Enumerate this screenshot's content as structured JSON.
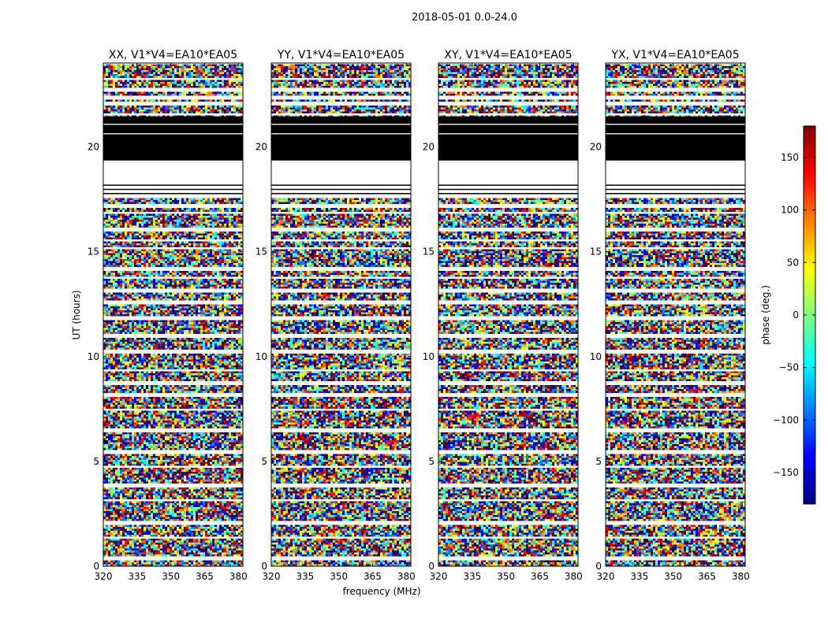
{
  "figure": {
    "suptitle": "2018-05-01 0.0-24.0"
  },
  "chart_data": {
    "type": "heatmap",
    "xlabel": "frequency (MHz)",
    "ylabel": "UT (hours)",
    "xlim": [
      320,
      382
    ],
    "ylim": [
      0,
      24
    ],
    "x_ticks": [
      320,
      335,
      350,
      365,
      380
    ],
    "y_ticks": [
      0,
      5,
      10,
      15,
      20
    ],
    "panels": [
      {
        "title": "XX, V1*V4=EA10*EA05"
      },
      {
        "title": "YY, V1*V4=EA10*EA05"
      },
      {
        "title": "XY, V1*V4=EA10*EA05"
      },
      {
        "title": "YX, V1*V4=EA10*EA05"
      }
    ],
    "colorbar": {
      "label": "phase (deg.)",
      "range": [
        -180,
        180
      ],
      "ticks": [
        -150,
        -100,
        -50,
        0,
        50,
        100,
        150
      ],
      "tick_labels": [
        "−150",
        "−100",
        "−50",
        "0",
        "50",
        "100",
        "150"
      ],
      "colormap": [
        "#00007f",
        "#0000ff",
        "#007fff",
        "#00ffff",
        "#7fff7f",
        "#ffff00",
        "#ff7f00",
        "#ff0000",
        "#7f0000"
      ]
    },
    "flagged_black_hours": [
      [
        19.35,
        20.6
      ],
      [
        20.65,
        21.05
      ],
      [
        21.1,
        21.45
      ]
    ],
    "blank_white_hours": [
      [
        17.7,
        19.3
      ]
    ],
    "missing_row_hours": [
      0.45,
      1.4,
      2.1,
      3.2,
      3.9,
      4.8,
      5.5,
      6.55,
      7.5,
      8.2,
      8.8,
      9.4,
      10.3,
      11.0,
      11.9,
      12.6,
      13.2,
      13.8,
      14.2,
      15.2,
      15.6,
      16.1,
      16.9,
      17.2,
      21.6,
      22.1,
      22.4,
      22.8,
      23.3
    ]
  }
}
